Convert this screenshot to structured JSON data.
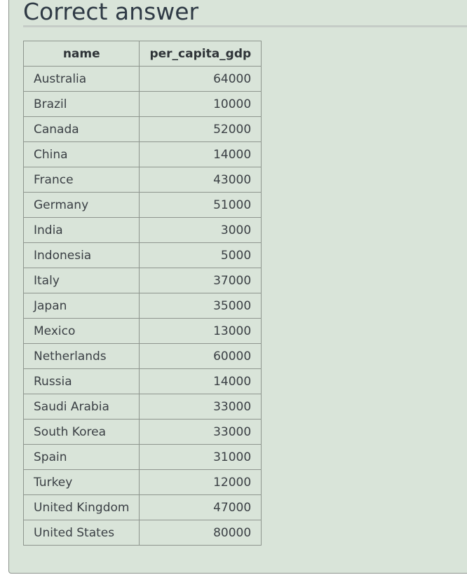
{
  "heading": "Correct answer",
  "table": {
    "columns": [
      "name",
      "per_capita_gdp"
    ],
    "rows": [
      [
        "Australia",
        "64000"
      ],
      [
        "Brazil",
        "10000"
      ],
      [
        "Canada",
        "52000"
      ],
      [
        "China",
        "14000"
      ],
      [
        "France",
        "43000"
      ],
      [
        "Germany",
        "51000"
      ],
      [
        "India",
        "3000"
      ],
      [
        "Indonesia",
        "5000"
      ],
      [
        "Italy",
        "37000"
      ],
      [
        "Japan",
        "35000"
      ],
      [
        "Mexico",
        "13000"
      ],
      [
        "Netherlands",
        "60000"
      ],
      [
        "Russia",
        "14000"
      ],
      [
        "Saudi Arabia",
        "33000"
      ],
      [
        "South Korea",
        "33000"
      ],
      [
        "Spain",
        "31000"
      ],
      [
        "Turkey",
        "12000"
      ],
      [
        "United Kingdom",
        "47000"
      ],
      [
        "United States",
        "80000"
      ]
    ]
  },
  "colors": {
    "panel_background": "#d9e4d9",
    "panel_border": "#8e958e",
    "heading_text": "#2f3a45",
    "cell_text": "#3a3f44"
  }
}
